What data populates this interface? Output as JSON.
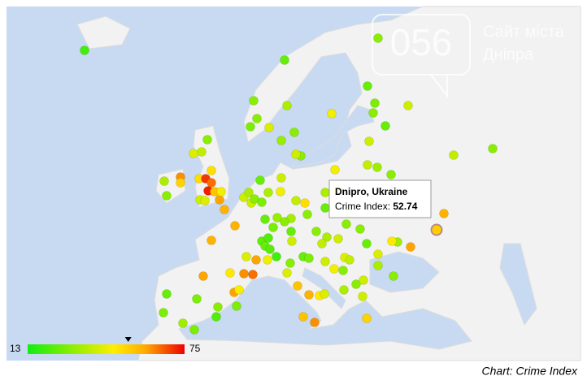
{
  "tooltip": {
    "title": "Dnipro, Ukraine",
    "label": "Crime Index:",
    "value": 52.74
  },
  "legend": {
    "min": 13,
    "max": 75
  },
  "caption": "Chart: Crime Index",
  "watermark": {
    "logo": "056",
    "line1": "Сайт міста",
    "line2": "Дніпра"
  },
  "point_values": [
    20,
    25,
    35,
    30,
    30,
    28,
    42,
    30,
    32,
    30,
    25,
    28,
    30,
    25,
    40,
    45,
    30,
    40,
    40,
    38,
    33,
    30,
    45,
    38,
    30,
    30,
    42,
    38,
    50,
    70,
    65,
    72,
    60,
    55,
    50,
    45,
    40,
    42,
    58,
    35,
    30,
    62,
    52,
    40,
    35,
    40,
    30,
    28,
    25,
    35,
    40,
    45,
    38,
    50,
    30,
    34,
    32,
    30,
    25,
    28,
    25,
    30,
    40,
    35,
    25,
    45,
    30,
    40,
    35,
    38,
    30,
    25,
    30,
    58,
    33,
    48,
    60,
    42,
    35,
    30,
    58,
    58,
    42,
    60,
    45,
    24,
    22,
    25,
    23,
    20,
    48,
    62,
    65,
    60,
    60,
    46,
    30,
    42,
    25,
    28,
    55,
    58,
    48,
    42,
    45,
    40,
    42,
    38,
    30,
    30,
    40,
    35,
    40,
    55,
    62,
    52,
    25,
    28,
    28,
    30,
    28,
    22,
    33,
    28
  ]
}
